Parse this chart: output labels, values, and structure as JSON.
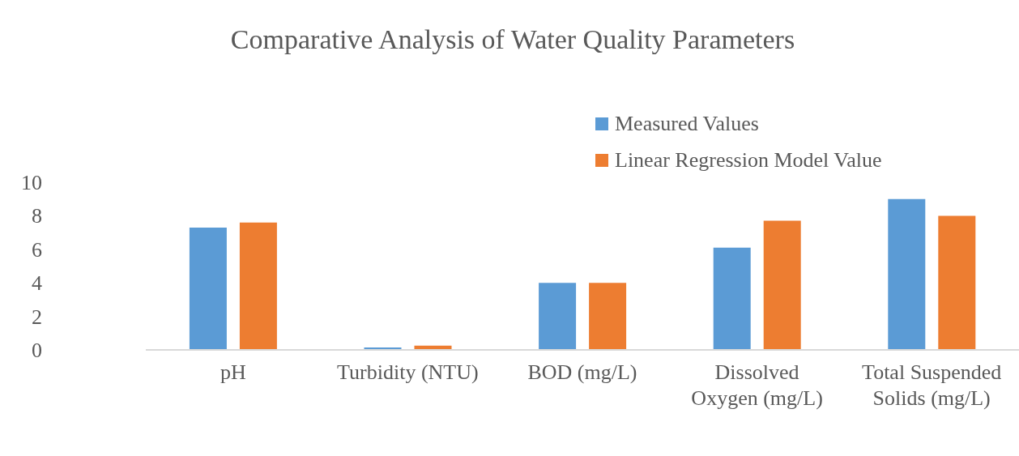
{
  "chart_data": {
    "type": "bar",
    "title": "Comparative Analysis of Water Quality Parameters",
    "categories": [
      "pH",
      "Turbidity (NTU)",
      "BOD (mg/L)",
      "Dissolved Oxygen (mg/L)",
      "Total Suspended Solids (mg/L)"
    ],
    "series": [
      {
        "name": "Measured Values",
        "color": "#5b9bd5",
        "values": [
          7.3,
          0.15,
          4.0,
          6.1,
          9.0
        ]
      },
      {
        "name": "Linear Regression Model Value",
        "color": "#ed7d31",
        "values": [
          7.6,
          0.25,
          4.0,
          7.7,
          8.0
        ]
      }
    ],
    "ylim": [
      0,
      10
    ],
    "yticks": [
      0,
      2,
      4,
      6,
      8,
      10
    ],
    "grid": false,
    "legend": "top right"
  }
}
